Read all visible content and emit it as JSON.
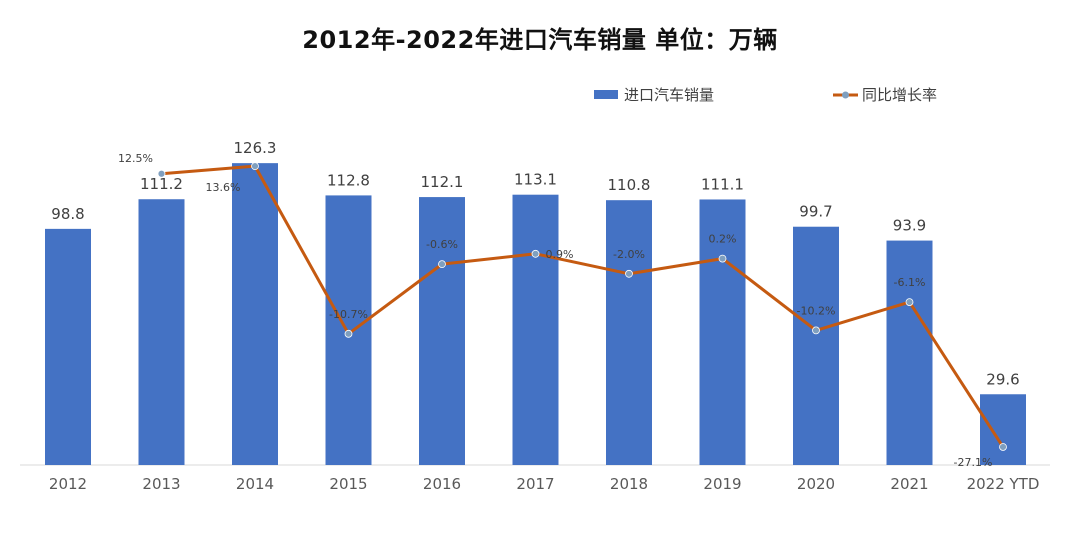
{
  "chart_data": {
    "type": "bar",
    "title": "2012年-2022年进口汽车销量 单位：万辆",
    "categories": [
      "2012",
      "2013",
      "2014",
      "2015",
      "2016",
      "2017",
      "2018",
      "2019",
      "2020",
      "2021",
      "2022 YTD"
    ],
    "series": [
      {
        "name": "进口汽车销量",
        "type": "bar",
        "color": "#4472C4",
        "values": [
          98.8,
          111.2,
          126.3,
          112.8,
          112.1,
          113.1,
          110.8,
          111.1,
          99.7,
          93.9,
          29.6
        ],
        "labels": [
          "98.8",
          "111.2",
          "126.3",
          "112.8",
          "112.1",
          "113.1",
          "110.8",
          "111.1",
          "99.7",
          "93.9",
          "29.6"
        ]
      },
      {
        "name": "同比增长率",
        "type": "line",
        "color": "#C55A11",
        "marker_color": "#7F9FBF",
        "values": [
          null,
          12.5,
          13.6,
          -10.7,
          -0.6,
          0.9,
          -2.0,
          0.2,
          -10.2,
          -6.1,
          -27.1
        ],
        "labels": [
          null,
          "12.5%",
          "13.6%",
          "-10.7%",
          "-0.6%",
          "0.9%",
          "-2.0%",
          "0.2%",
          "-10.2%",
          "-6.1%",
          "-27.1%"
        ]
      }
    ],
    "legend_position": "top-right",
    "grid": false
  }
}
